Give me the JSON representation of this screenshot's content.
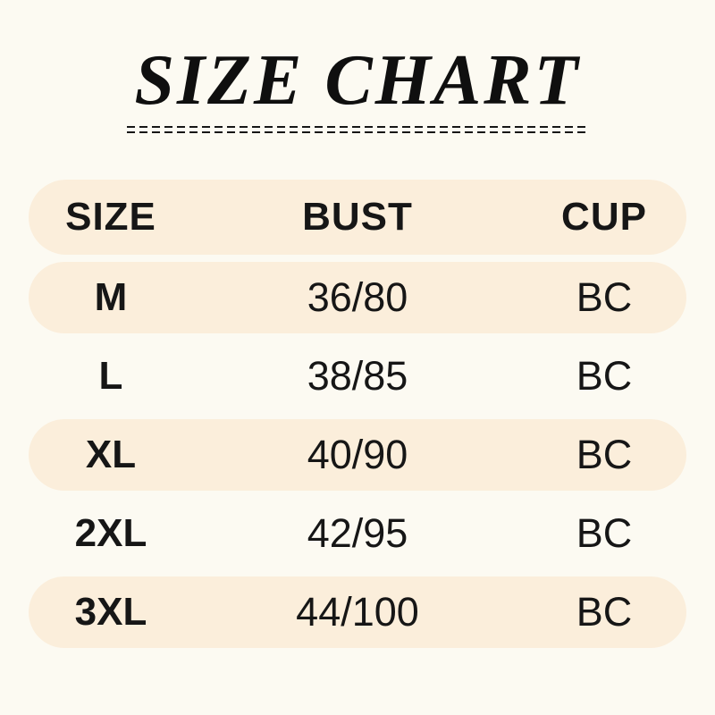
{
  "title": {
    "text": "SIZE CHART"
  },
  "colors": {
    "background": "#FCFAF2",
    "row_highlight": "#FBEEDB",
    "text": "#161616",
    "title": "#0F0F0F"
  },
  "table": {
    "headers": [
      "SIZE",
      "BUST",
      "CUP"
    ],
    "rows": [
      {
        "size": "M",
        "bust": "36/80",
        "cup": "BC"
      },
      {
        "size": "L",
        "bust": "38/85",
        "cup": "BC"
      },
      {
        "size": "XL",
        "bust": "40/90",
        "cup": "BC"
      },
      {
        "size": "2XL",
        "bust": "42/95",
        "cup": "BC"
      },
      {
        "size": "3XL",
        "bust": "44/100",
        "cup": "BC"
      }
    ]
  },
  "chart_data": {
    "type": "table",
    "title": "SIZE CHART",
    "columns": [
      "SIZE",
      "BUST",
      "CUP"
    ],
    "rows": [
      [
        "M",
        "36/80",
        "BC"
      ],
      [
        "L",
        "38/85",
        "BC"
      ],
      [
        "XL",
        "40/90",
        "BC"
      ],
      [
        "2XL",
        "42/95",
        "BC"
      ],
      [
        "3XL",
        "44/100",
        "BC"
      ]
    ],
    "layout": {
      "highlighted_rows": [
        "header",
        "M",
        "XL",
        "3XL"
      ],
      "columns_align": "center"
    }
  }
}
